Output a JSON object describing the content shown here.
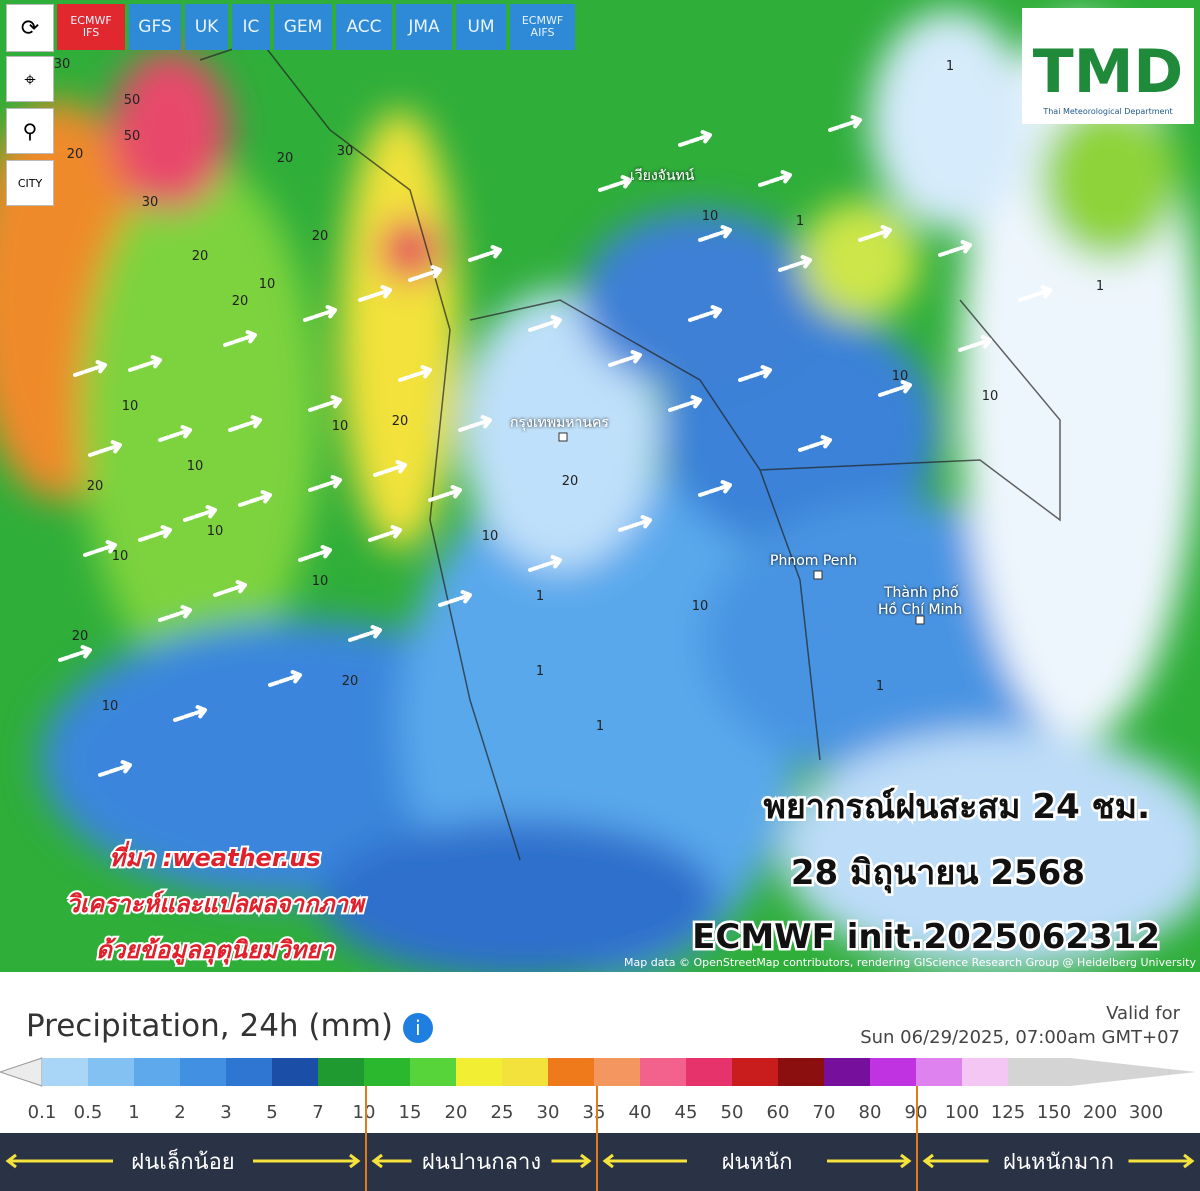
{
  "toolbar": {
    "models": [
      [
        "ECMWF",
        "IFS"
      ],
      [
        "GFS"
      ],
      [
        "UK"
      ],
      [
        "IC"
      ],
      [
        "GEM"
      ],
      [
        "ACC"
      ],
      [
        "JMA"
      ],
      [
        "UM"
      ],
      [
        "ECMWF",
        "AIFS"
      ]
    ],
    "city": "CITY"
  },
  "logo": {
    "title": "TMD",
    "subtitle": "Thai Meteorological Department"
  },
  "map": {
    "places": [
      "Phnom Penh",
      "Thành phố",
      "Hồ Chí Minh",
      "กรุงเทพมหานคร",
      "เวียงจันทน์"
    ],
    "contours": [
      "30",
      "50",
      "50",
      "20",
      "30",
      "20",
      "20",
      "10",
      "30",
      "20",
      "20",
      "10",
      "10",
      "20",
      "10",
      "20",
      "10",
      "10",
      "10",
      "20",
      "10",
      "10",
      "20",
      "10",
      "10",
      "1",
      "1",
      "1",
      "1",
      "10",
      "20",
      "10",
      "1",
      "1",
      "1"
    ],
    "attribution": "Map data © OpenStreetMap contributors, rendering GIScience Research Group @ Heidelberg University"
  },
  "overlay": {
    "title": "พยากรณ์ฝนสะสม 24 ชม.",
    "date": "28 มิถุนายน 2568",
    "init": "ECMWF init.2025062312",
    "source": [
      "ที่มา :weather.us",
      "วิเคราะห์และแปลผลจากภาพ",
      "ด้วยข้อมูลอุตุนิยมวิทยา"
    ]
  },
  "legend": {
    "title": "Precipitation, 24h (mm)",
    "valid_label": "Valid for",
    "valid_time": "Sun 06/29/2025, 07:00am GMT+07",
    "labels": [
      "0.1",
      "0.5",
      "1",
      "2",
      "3",
      "5",
      "7",
      "10",
      "15",
      "20",
      "25",
      "30",
      "35",
      "40",
      "45",
      "50",
      "60",
      "70",
      "80",
      "90",
      "100",
      "125",
      "150",
      "200",
      "300"
    ],
    "colors": [
      "#a9d5f7",
      "#84c1f3",
      "#5ea8ec",
      "#4290e2",
      "#2f76d2",
      "#1b4ea6",
      "#1f9a31",
      "#2cb82e",
      "#57d43a",
      "#f1ee34",
      "#f3e13c",
      "#ef7a1c",
      "#f49660",
      "#f2628d",
      "#e6336b",
      "#c91c1c",
      "#8c0f10",
      "#76109c",
      "#bf33e0",
      "#de82ef",
      "#f3c6f4",
      "#d4d4d4"
    ],
    "categories": [
      "ฝนเล็กน้อย",
      "ฝนปานกลาง",
      "ฝนหนัก",
      "ฝนหนักมาก"
    ]
  }
}
